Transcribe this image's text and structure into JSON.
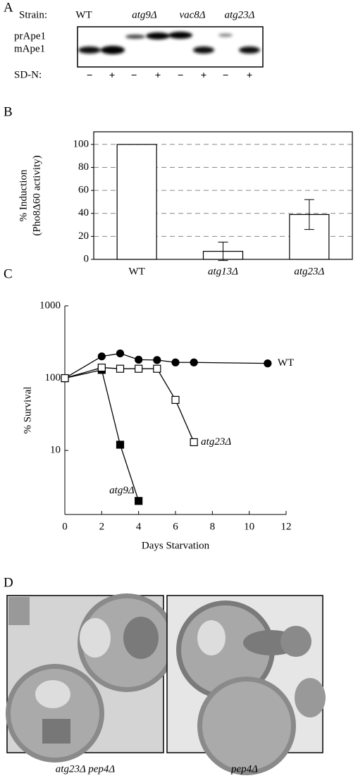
{
  "panels": {
    "a": "A",
    "b": "B",
    "c": "C",
    "d": "D"
  },
  "blot": {
    "strain_label": "Strain:",
    "strains": [
      "WT",
      "atg9Δ",
      "vac8Δ",
      "atg23Δ"
    ],
    "bands": [
      "prApe1",
      "mApe1"
    ],
    "condition_label": "SD-N:",
    "signs": [
      "−",
      "+",
      "−",
      "+",
      "−",
      "+",
      "−",
      "+"
    ]
  },
  "chart_data": [
    {
      "type": "bar",
      "ylabel": [
        "% Induction",
        "(Pho8Δ60 activity)"
      ],
      "categories": [
        "WT",
        "atg13Δ",
        "atg23Δ"
      ],
      "values": [
        100,
        7,
        39
      ],
      "errors": [
        null,
        8,
        13
      ],
      "color": "#ffffff",
      "ylim": [
        0,
        111
      ],
      "yticks": [
        0,
        20,
        40,
        60,
        80,
        100
      ],
      "grid": true
    },
    {
      "type": "line",
      "xlabel": "Days Starvation",
      "ylabel": "% Survival",
      "log_y": true,
      "xlim": [
        0,
        12
      ],
      "xticks": [
        0,
        2,
        4,
        6,
        8,
        10,
        12
      ],
      "ylim": [
        1.3,
        1000
      ],
      "yticks": [
        10,
        100,
        1000
      ],
      "series": [
        {
          "name": "WT",
          "marker": "circle",
          "filled": true,
          "x": [
            0,
            2,
            3,
            4,
            5,
            6,
            7,
            11
          ],
          "values": [
            100,
            200,
            220,
            180,
            178,
            165,
            165,
            160
          ]
        },
        {
          "name": "atg9Δ",
          "marker": "square",
          "filled": true,
          "x": [
            0,
            2,
            3,
            4
          ],
          "values": [
            100,
            130,
            12,
            2
          ]
        },
        {
          "name": "atg23Δ",
          "marker": "square",
          "filled": false,
          "x": [
            0,
            2,
            3,
            4,
            5,
            6,
            7
          ],
          "values": [
            100,
            140,
            135,
            135,
            135,
            50,
            13
          ]
        }
      ]
    }
  ],
  "micrographs": {
    "captions": [
      "atg23Δ pep4Δ",
      "pep4Δ"
    ]
  }
}
